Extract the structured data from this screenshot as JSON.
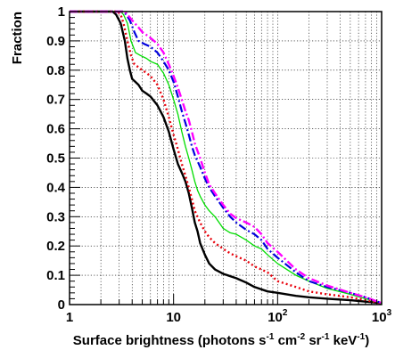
{
  "chart_data": {
    "type": "line",
    "xlabel": {
      "parts": [
        {
          "text": "Surface brightness (photons s",
          "sup": false
        },
        {
          "text": "-1",
          "sup": true
        },
        {
          "text": " cm",
          "sup": false
        },
        {
          "text": "-2",
          "sup": true
        },
        {
          "text": " sr",
          "sup": false
        },
        {
          "text": "-1",
          "sup": true
        },
        {
          "text": " keV",
          "sup": false
        },
        {
          "text": "-1",
          "sup": true
        },
        {
          "text": ")",
          "sup": false
        }
      ]
    },
    "ylabel": "Fraction",
    "xscale": "log",
    "xlim": [
      1,
      1000
    ],
    "ylim": [
      0,
      1
    ],
    "grid": true,
    "legend": "none",
    "x_ticks": [
      {
        "value": 1,
        "base": "1",
        "exp": ""
      },
      {
        "value": 10,
        "base": "10",
        "exp": ""
      },
      {
        "value": 100,
        "base": "10",
        "exp": "2"
      },
      {
        "value": 1000,
        "base": "10",
        "exp": "3"
      }
    ],
    "y_ticks": [
      {
        "value": 0,
        "label": "0"
      },
      {
        "value": 0.1,
        "label": "0.1"
      },
      {
        "value": 0.2,
        "label": "0.2"
      },
      {
        "value": 0.3,
        "label": "0.3"
      },
      {
        "value": 0.4,
        "label": "0.4"
      },
      {
        "value": 0.5,
        "label": "0.5"
      },
      {
        "value": 0.6,
        "label": "0.6"
      },
      {
        "value": 0.7,
        "label": "0.7"
      },
      {
        "value": 0.8,
        "label": "0.8"
      },
      {
        "value": 0.9,
        "label": "0.9"
      },
      {
        "value": 1,
        "label": "1"
      }
    ],
    "series": [
      {
        "color": "#000000",
        "style": "solid",
        "width": 2.4,
        "points": [
          [
            1,
            1
          ],
          [
            2.6,
            1
          ],
          [
            2.8,
            0.99
          ],
          [
            3.1,
            0.96
          ],
          [
            3.4,
            0.9
          ],
          [
            3.6,
            0.84
          ],
          [
            3.8,
            0.8
          ],
          [
            4,
            0.77
          ],
          [
            4.3,
            0.76
          ],
          [
            4.6,
            0.75
          ],
          [
            5,
            0.73
          ],
          [
            5.5,
            0.72
          ],
          [
            6,
            0.71
          ],
          [
            7,
            0.68
          ],
          [
            8,
            0.64
          ],
          [
            9,
            0.59
          ],
          [
            10,
            0.53
          ],
          [
            11,
            0.48
          ],
          [
            12,
            0.45
          ],
          [
            13,
            0.42
          ],
          [
            14,
            0.38
          ],
          [
            15,
            0.33
          ],
          [
            16,
            0.28
          ],
          [
            17,
            0.25
          ],
          [
            18,
            0.21
          ],
          [
            20,
            0.17
          ],
          [
            22,
            0.14
          ],
          [
            25,
            0.12
          ],
          [
            30,
            0.105
          ],
          [
            40,
            0.09
          ],
          [
            50,
            0.075
          ],
          [
            60,
            0.06
          ],
          [
            80,
            0.045
          ],
          [
            100,
            0.04
          ],
          [
            150,
            0.03
          ],
          [
            200,
            0.025
          ],
          [
            300,
            0.02
          ],
          [
            500,
            0.015
          ],
          [
            700,
            0.01
          ],
          [
            1000,
            0.005
          ]
        ]
      },
      {
        "color": "#e8000b",
        "style": "dotted",
        "width": 2.4,
        "points": [
          [
            1,
            1
          ],
          [
            2.9,
            1
          ],
          [
            3.1,
            0.99
          ],
          [
            3.3,
            0.96
          ],
          [
            3.6,
            0.9
          ],
          [
            3.9,
            0.85
          ],
          [
            4.2,
            0.82
          ],
          [
            4.6,
            0.81
          ],
          [
            5,
            0.8
          ],
          [
            5.5,
            0.79
          ],
          [
            6,
            0.78
          ],
          [
            7,
            0.75
          ],
          [
            8,
            0.7
          ],
          [
            9,
            0.64
          ],
          [
            10,
            0.58
          ],
          [
            11,
            0.53
          ],
          [
            12,
            0.48
          ],
          [
            13,
            0.44
          ],
          [
            14,
            0.4
          ],
          [
            15,
            0.36
          ],
          [
            16,
            0.32
          ],
          [
            18,
            0.28
          ],
          [
            20,
            0.25
          ],
          [
            22,
            0.23
          ],
          [
            25,
            0.21
          ],
          [
            30,
            0.19
          ],
          [
            35,
            0.175
          ],
          [
            40,
            0.165
          ],
          [
            50,
            0.15
          ],
          [
            60,
            0.13
          ],
          [
            70,
            0.12
          ],
          [
            80,
            0.11
          ],
          [
            100,
            0.08
          ],
          [
            150,
            0.06
          ],
          [
            200,
            0.045
          ],
          [
            300,
            0.035
          ],
          [
            500,
            0.025
          ],
          [
            700,
            0.015
          ],
          [
            1000,
            0.005
          ]
        ]
      },
      {
        "color": "#00dd00",
        "style": "solid",
        "width": 1.3,
        "points": [
          [
            1,
            1
          ],
          [
            3.1,
            1
          ],
          [
            3.3,
            0.99
          ],
          [
            3.6,
            0.96
          ],
          [
            3.9,
            0.9
          ],
          [
            4.3,
            0.86
          ],
          [
            4.8,
            0.85
          ],
          [
            5.5,
            0.84
          ],
          [
            6,
            0.83
          ],
          [
            7,
            0.82
          ],
          [
            8,
            0.79
          ],
          [
            9,
            0.75
          ],
          [
            10,
            0.7
          ],
          [
            11,
            0.65
          ],
          [
            12,
            0.59
          ],
          [
            13,
            0.54
          ],
          [
            14,
            0.5
          ],
          [
            15,
            0.46
          ],
          [
            16,
            0.42
          ],
          [
            17,
            0.39
          ],
          [
            18,
            0.37
          ],
          [
            20,
            0.34
          ],
          [
            22,
            0.32
          ],
          [
            25,
            0.3
          ],
          [
            30,
            0.26
          ],
          [
            35,
            0.245
          ],
          [
            40,
            0.24
          ],
          [
            50,
            0.22
          ],
          [
            60,
            0.2
          ],
          [
            70,
            0.19
          ],
          [
            80,
            0.17
          ],
          [
            100,
            0.14
          ],
          [
            150,
            0.1
          ],
          [
            200,
            0.08
          ],
          [
            300,
            0.055
          ],
          [
            500,
            0.035
          ],
          [
            700,
            0.02
          ],
          [
            1000,
            0.005
          ]
        ]
      },
      {
        "color": "#0000dd",
        "style": "dashdot",
        "width": 2.2,
        "points": [
          [
            1,
            1
          ],
          [
            3.3,
            1
          ],
          [
            3.5,
            0.99
          ],
          [
            3.8,
            0.97
          ],
          [
            4.2,
            0.93
          ],
          [
            4.6,
            0.9
          ],
          [
            5.2,
            0.89
          ],
          [
            6,
            0.88
          ],
          [
            7,
            0.86
          ],
          [
            8,
            0.83
          ],
          [
            9,
            0.8
          ],
          [
            10,
            0.76
          ],
          [
            11,
            0.71
          ],
          [
            12,
            0.66
          ],
          [
            13,
            0.62
          ],
          [
            14,
            0.58
          ],
          [
            15,
            0.54
          ],
          [
            16,
            0.51
          ],
          [
            18,
            0.47
          ],
          [
            20,
            0.43
          ],
          [
            22,
            0.4
          ],
          [
            25,
            0.37
          ],
          [
            30,
            0.33
          ],
          [
            35,
            0.3
          ],
          [
            40,
            0.28
          ],
          [
            50,
            0.255
          ],
          [
            60,
            0.24
          ],
          [
            70,
            0.22
          ],
          [
            80,
            0.19
          ],
          [
            100,
            0.16
          ],
          [
            150,
            0.11
          ],
          [
            200,
            0.08
          ],
          [
            300,
            0.06
          ],
          [
            500,
            0.04
          ],
          [
            700,
            0.025
          ],
          [
            1000,
            0.005
          ]
        ]
      },
      {
        "color": "#ff00ff",
        "style": "dashdot",
        "width": 2.4,
        "points": [
          [
            1,
            1
          ],
          [
            3.4,
            1
          ],
          [
            3.6,
            0.99
          ],
          [
            4,
            0.97
          ],
          [
            4.5,
            0.95
          ],
          [
            5,
            0.93
          ],
          [
            5.5,
            0.92
          ],
          [
            6,
            0.91
          ],
          [
            7,
            0.89
          ],
          [
            8,
            0.86
          ],
          [
            9,
            0.82
          ],
          [
            10,
            0.78
          ],
          [
            11,
            0.74
          ],
          [
            12,
            0.7
          ],
          [
            13,
            0.66
          ],
          [
            14,
            0.63
          ],
          [
            15,
            0.59
          ],
          [
            16,
            0.55
          ],
          [
            18,
            0.5
          ],
          [
            20,
            0.45
          ],
          [
            22,
            0.41
          ],
          [
            25,
            0.38
          ],
          [
            30,
            0.34
          ],
          [
            35,
            0.31
          ],
          [
            40,
            0.295
          ],
          [
            50,
            0.28
          ],
          [
            60,
            0.265
          ],
          [
            70,
            0.24
          ],
          [
            80,
            0.21
          ],
          [
            100,
            0.18
          ],
          [
            150,
            0.12
          ],
          [
            200,
            0.09
          ],
          [
            300,
            0.065
          ],
          [
            500,
            0.04
          ],
          [
            700,
            0.025
          ],
          [
            1000,
            0.005
          ]
        ]
      }
    ]
  }
}
